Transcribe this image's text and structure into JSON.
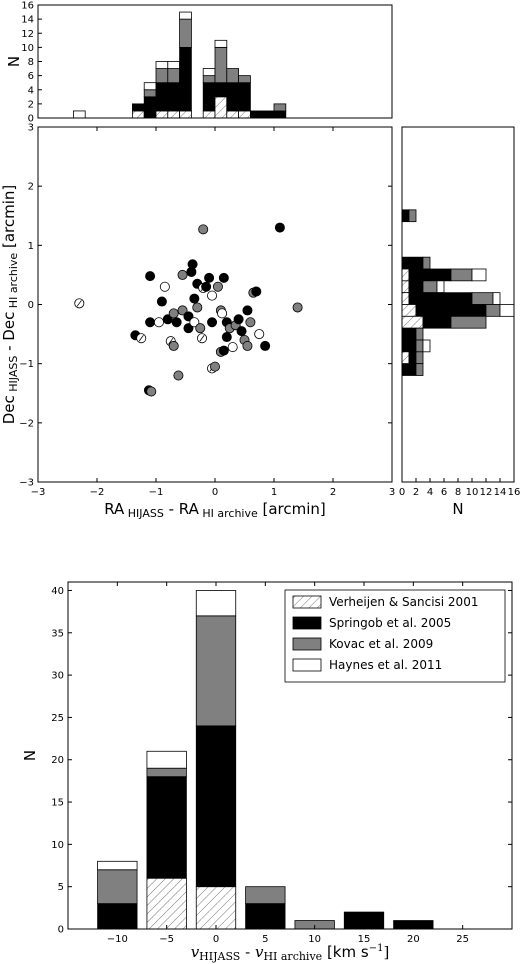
{
  "colors": {
    "springob": "#000000",
    "kovac": "#808080",
    "haynes": "#ffffff",
    "verheijen": "hatched"
  },
  "chart_data": [
    {
      "type": "bar",
      "panel": "ra-histogram",
      "ylabel": "N",
      "ylim": [
        0,
        16
      ],
      "yticks": [
        "0",
        "2",
        "4",
        "6",
        "8",
        "10",
        "12",
        "14",
        "16"
      ],
      "xlim": [
        -3,
        3
      ],
      "bin_width": 0.2,
      "bins": [
        {
          "x": -2.4,
          "h": 0,
          "s": 0,
          "k": 0,
          "n": 1
        },
        {
          "x": -1.4,
          "h": 1,
          "s": 1,
          "k": 0,
          "n": 0
        },
        {
          "x": -1.2,
          "h": 0,
          "s": 3,
          "k": 1,
          "n": 1
        },
        {
          "x": -1.0,
          "h": 1,
          "s": 4,
          "k": 2,
          "n": 1
        },
        {
          "x": -0.8,
          "h": 1,
          "s": 4,
          "k": 2,
          "n": 1
        },
        {
          "x": -0.6,
          "h": 1,
          "s": 9,
          "k": 4,
          "n": 1
        },
        {
          "x": -0.2,
          "h": 1,
          "s": 4,
          "k": 1,
          "n": 1
        },
        {
          "x": 0.0,
          "h": 3,
          "s": 2,
          "k": 5,
          "n": 1
        },
        {
          "x": 0.2,
          "h": 1,
          "s": 4,
          "k": 2,
          "n": 0
        },
        {
          "x": 0.4,
          "h": 1,
          "s": 4,
          "k": 1,
          "n": 0
        },
        {
          "x": 0.6,
          "h": 0,
          "s": 1,
          "k": 0,
          "n": 0
        },
        {
          "x": 0.8,
          "h": 0,
          "s": 1,
          "k": 0,
          "n": 0
        },
        {
          "x": 1.0,
          "h": 0,
          "s": 1,
          "k": 1,
          "n": 0
        }
      ],
      "bins_note": "h=Verheijen&Sancisi, s=Springob, k=Kovac, n=Haynes"
    },
    {
      "type": "scatter",
      "panel": "position-offsets",
      "xlabel_main": "RA",
      "xlabel_sub1": "HIJASS",
      "xlabel_mid": " - RA",
      "xlabel_sub2": "HI archive",
      "xlabel_unit": " [arcmin]",
      "ylabel_main": "Dec",
      "ylabel_sub1": "HIJASS",
      "ylabel_mid": " - Dec",
      "ylabel_sub2": "HI archive",
      "ylabel_unit": " [arcmin]",
      "xlim": [
        -3,
        3
      ],
      "ylim": [
        -3,
        3
      ],
      "xticks": [
        "−3",
        "−2",
        "−1",
        "0",
        "1",
        "2",
        "3"
      ],
      "yticks": [
        "−3",
        "−2",
        "−1",
        "0",
        "1",
        "2",
        "3"
      ],
      "points": [
        {
          "x": -2.3,
          "y": 0.02,
          "c": "verheijen"
        },
        {
          "x": -1.12,
          "y": -1.45,
          "c": "springob"
        },
        {
          "x": -1.08,
          "y": -1.47,
          "c": "kovac"
        },
        {
          "x": -1.35,
          "y": -0.52,
          "c": "springob"
        },
        {
          "x": -1.25,
          "y": -0.57,
          "c": "verheijen"
        },
        {
          "x": -1.1,
          "y": 0.48,
          "c": "springob"
        },
        {
          "x": -1.1,
          "y": -0.3,
          "c": "springob"
        },
        {
          "x": -0.95,
          "y": -0.3,
          "c": "haynes"
        },
        {
          "x": -0.85,
          "y": 0.3,
          "c": "haynes"
        },
        {
          "x": -0.9,
          "y": 0.05,
          "c": "springob"
        },
        {
          "x": -0.8,
          "y": -0.25,
          "c": "springob"
        },
        {
          "x": -0.75,
          "y": -0.62,
          "c": "verheijen"
        },
        {
          "x": -0.7,
          "y": -0.7,
          "c": "kovac"
        },
        {
          "x": -0.7,
          "y": -0.15,
          "c": "kovac"
        },
        {
          "x": -0.65,
          "y": -0.3,
          "c": "springob"
        },
        {
          "x": -0.55,
          "y": 0.5,
          "c": "kovac"
        },
        {
          "x": -0.62,
          "y": -1.2,
          "c": "kovac"
        },
        {
          "x": -0.55,
          "y": -0.1,
          "c": "kovac"
        },
        {
          "x": -0.45,
          "y": -0.4,
          "c": "springob"
        },
        {
          "x": -0.45,
          "y": -0.2,
          "c": "springob"
        },
        {
          "x": -0.4,
          "y": 0.55,
          "c": "springob"
        },
        {
          "x": -0.35,
          "y": 0.1,
          "c": "springob"
        },
        {
          "x": -0.3,
          "y": 0.35,
          "c": "springob"
        },
        {
          "x": -0.35,
          "y": -0.3,
          "c": "haynes"
        },
        {
          "x": -0.3,
          "y": -0.05,
          "c": "kovac"
        },
        {
          "x": -0.25,
          "y": -0.4,
          "c": "kovac"
        },
        {
          "x": -0.22,
          "y": -0.57,
          "c": "verheijen"
        },
        {
          "x": -0.38,
          "y": 0.68,
          "c": "springob"
        },
        {
          "x": -0.2,
          "y": 0.28,
          "c": "verheijen"
        },
        {
          "x": -0.2,
          "y": 1.27,
          "c": "kovac"
        },
        {
          "x": -0.15,
          "y": 0.3,
          "c": "springob"
        },
        {
          "x": -0.1,
          "y": 0.45,
          "c": "springob"
        },
        {
          "x": -0.05,
          "y": 0.15,
          "c": "haynes"
        },
        {
          "x": -0.05,
          "y": -0.3,
          "c": "springob"
        },
        {
          "x": -0.05,
          "y": -1.08,
          "c": "verheijen"
        },
        {
          "x": 0.0,
          "y": -1.05,
          "c": "kovac"
        },
        {
          "x": 0.05,
          "y": 0.3,
          "c": "kovac"
        },
        {
          "x": 0.1,
          "y": -0.1,
          "c": "kovac"
        },
        {
          "x": 0.1,
          "y": -0.8,
          "c": "kovac"
        },
        {
          "x": 0.15,
          "y": -0.78,
          "c": "springob"
        },
        {
          "x": 0.12,
          "y": -0.15,
          "c": "haynes"
        },
        {
          "x": 0.15,
          "y": 0.45,
          "c": "springob"
        },
        {
          "x": 0.2,
          "y": -0.3,
          "c": "springob"
        },
        {
          "x": 0.2,
          "y": -0.55,
          "c": "springob"
        },
        {
          "x": 0.25,
          "y": -0.4,
          "c": "kovac"
        },
        {
          "x": 0.3,
          "y": -0.72,
          "c": "haynes"
        },
        {
          "x": 0.35,
          "y": -0.35,
          "c": "kovac"
        },
        {
          "x": 0.4,
          "y": -0.25,
          "c": "springob"
        },
        {
          "x": 0.45,
          "y": -0.45,
          "c": "springob"
        },
        {
          "x": 0.5,
          "y": -0.6,
          "c": "kovac"
        },
        {
          "x": 0.55,
          "y": -0.1,
          "c": "springob"
        },
        {
          "x": 0.55,
          "y": -0.7,
          "c": "kovac"
        },
        {
          "x": 0.6,
          "y": -0.3,
          "c": "kovac"
        },
        {
          "x": 0.65,
          "y": 0.2,
          "c": "kovac"
        },
        {
          "x": 0.7,
          "y": 0.22,
          "c": "springob"
        },
        {
          "x": 0.75,
          "y": -0.5,
          "c": "haynes"
        },
        {
          "x": 0.85,
          "y": -0.7,
          "c": "springob"
        },
        {
          "x": 1.1,
          "y": 1.3,
          "c": "springob"
        },
        {
          "x": 1.4,
          "y": -0.05,
          "c": "kovac"
        }
      ]
    },
    {
      "type": "bar",
      "panel": "dec-histogram",
      "orientation": "horizontal",
      "xlabel": "N",
      "xlim": [
        0,
        16
      ],
      "xticks": [
        "0",
        "2",
        "4",
        "6",
        "8",
        "10",
        "12",
        "14",
        "16"
      ],
      "ylim": [
        -3,
        3
      ],
      "bin_width": 0.2,
      "bins": [
        {
          "y": 1.4,
          "h": 0,
          "s": 1,
          "k": 1,
          "n": 0
        },
        {
          "y": 0.6,
          "h": 0,
          "s": 3,
          "k": 1,
          "n": 0
        },
        {
          "y": 0.4,
          "h": 1,
          "s": 6,
          "k": 3,
          "n": 2
        },
        {
          "y": 0.2,
          "h": 1,
          "s": 2,
          "k": 2,
          "n": 1
        },
        {
          "y": 0.0,
          "h": 1,
          "s": 9,
          "k": 3,
          "n": 1
        },
        {
          "y": -0.2,
          "h": 2,
          "s": 10,
          "k": 2,
          "n": 2
        },
        {
          "y": -0.4,
          "h": 3,
          "s": 4,
          "k": 5,
          "n": 0
        },
        {
          "y": -0.6,
          "h": 0,
          "s": 2,
          "k": 1,
          "n": 0
        },
        {
          "y": -0.8,
          "h": 0,
          "s": 2,
          "k": 1,
          "n": 1
        },
        {
          "y": -1.0,
          "h": 1,
          "s": 1,
          "k": 1,
          "n": 0
        },
        {
          "y": -1.2,
          "h": 0,
          "s": 2,
          "k": 1,
          "n": 0
        }
      ]
    },
    {
      "type": "bar",
      "panel": "velocity-histogram",
      "stacked": true,
      "xlabel_v1": "v",
      "xlabel_sub1": "HIJASS",
      "xlabel_mid": " - ",
      "xlabel_v2": "v",
      "xlabel_sub2": "HI archive",
      "xlabel_unit": " [km s",
      "xlabel_exp": "−1",
      "xlabel_close": "]",
      "ylabel": "N",
      "xlim": [
        -15,
        30
      ],
      "ylim": [
        0,
        41
      ],
      "xticks": [
        "−10",
        "−5",
        "0",
        "5",
        "10",
        "15",
        "20",
        "25"
      ],
      "yticks": [
        "0",
        "5",
        "10",
        "15",
        "20",
        "25",
        "30",
        "35",
        "40"
      ],
      "bin_width": 4,
      "legend_position": "top-right",
      "series": [
        {
          "name": "Verheijen & Sancisi 2001",
          "key": "verheijen"
        },
        {
          "name": "Springob et al. 2005",
          "key": "springob"
        },
        {
          "name": "Kovac et al. 2009",
          "key": "kovac"
        },
        {
          "name": "Haynes et al. 2011",
          "key": "haynes"
        }
      ],
      "bins": [
        {
          "x": -10,
          "verheijen": 0,
          "springob": 3,
          "kovac": 4,
          "haynes": 1
        },
        {
          "x": -5,
          "verheijen": 6,
          "springob": 12,
          "kovac": 1,
          "haynes": 2
        },
        {
          "x": 0,
          "verheijen": 5,
          "springob": 19,
          "kovac": 13,
          "haynes": 3
        },
        {
          "x": 5,
          "verheijen": 0,
          "springob": 3,
          "kovac": 2,
          "haynes": 0
        },
        {
          "x": 10,
          "verheijen": 0,
          "springob": 0,
          "kovac": 1,
          "haynes": 0
        },
        {
          "x": 15,
          "verheijen": 0,
          "springob": 2,
          "kovac": 0,
          "haynes": 0
        },
        {
          "x": 20,
          "verheijen": 0,
          "springob": 1,
          "kovac": 0,
          "haynes": 0
        }
      ]
    }
  ]
}
